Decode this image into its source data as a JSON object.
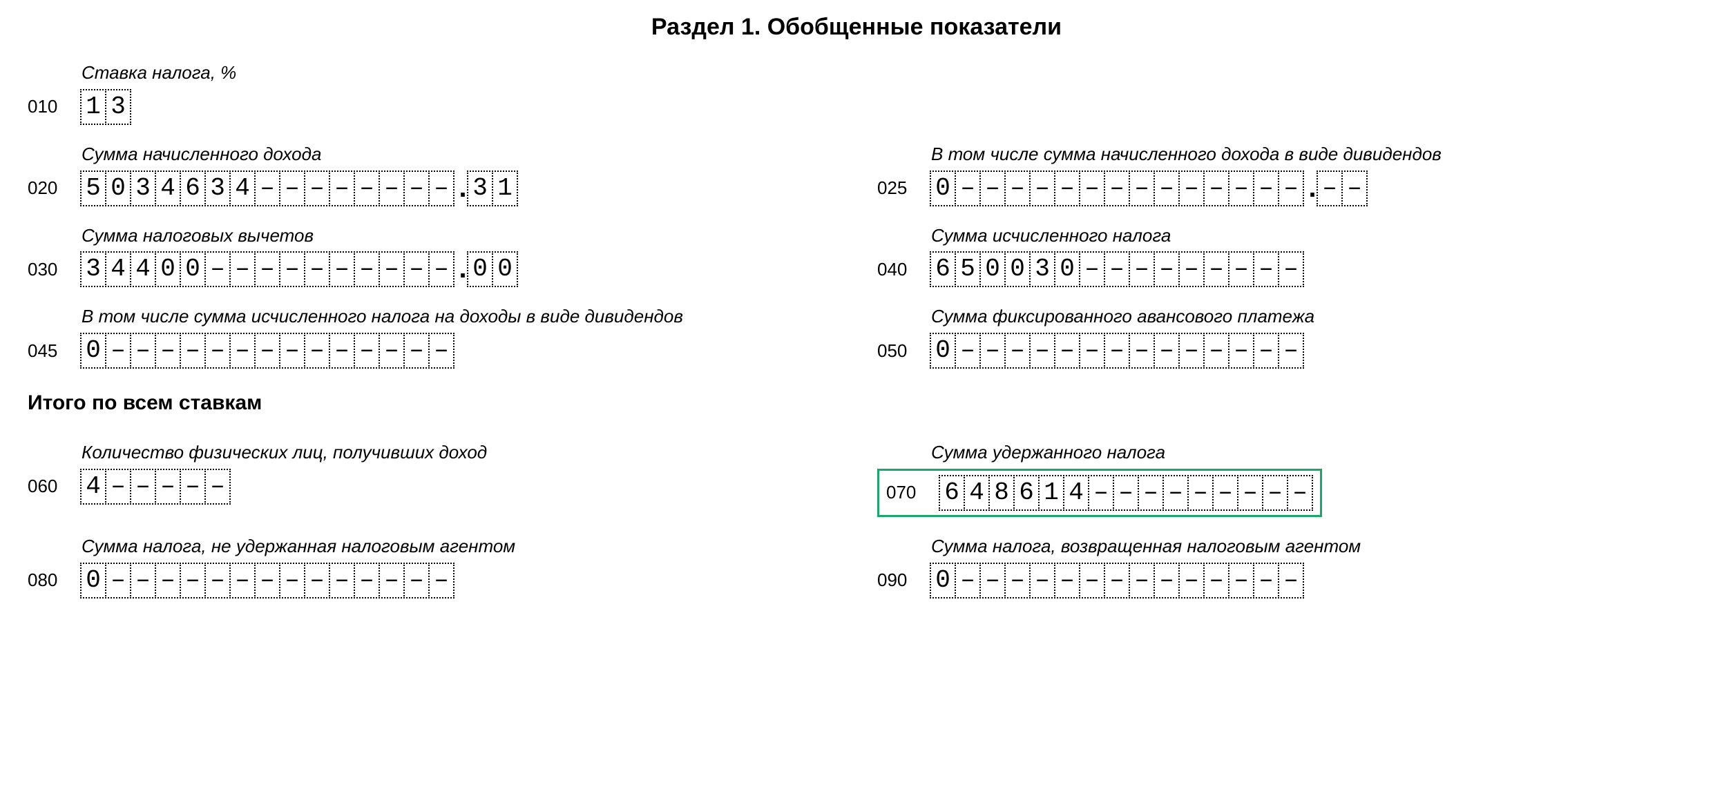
{
  "title": "Раздел 1. Обобщенные показатели",
  "subtitle": "Итого по всем ставкам",
  "dash": "–",
  "highlight_color": "#1aa86a",
  "labels": {
    "l010": "Ставка налога, %",
    "l020": "Сумма начисленного дохода",
    "l025": "В том числе сумма начисленного дохода в виде дивидендов",
    "l030": "Сумма налоговых вычетов",
    "l040": "Сумма исчисленного налога",
    "l045": "В том числе сумма исчисленного налога на доходы в виде дивидендов",
    "l050": "Сумма фиксированного авансового платежа",
    "l060": "Количество физических лиц, получивших доход",
    "l070": "Сумма удержанного налога",
    "l080": "Сумма налога, не удержанная налоговым агентом",
    "l090": "Сумма налога, возвращенная налоговым агентом"
  },
  "fields": {
    "f010": {
      "code": "010",
      "int_len": 2,
      "dec_len": 0,
      "int": "13",
      "dec": "",
      "highlighted": false
    },
    "f020": {
      "code": "020",
      "int_len": 15,
      "dec_len": 2,
      "int": "5034634",
      "dec": "31",
      "highlighted": false
    },
    "f025": {
      "code": "025",
      "int_len": 15,
      "dec_len": 2,
      "int": "0",
      "dec": "",
      "highlighted": false
    },
    "f030": {
      "code": "030",
      "int_len": 15,
      "dec_len": 2,
      "int": "34400",
      "dec": "00",
      "highlighted": false
    },
    "f040": {
      "code": "040",
      "int_len": 15,
      "dec_len": 0,
      "int": "650030",
      "dec": "",
      "highlighted": false
    },
    "f045": {
      "code": "045",
      "int_len": 15,
      "dec_len": 0,
      "int": "0",
      "dec": "",
      "highlighted": false
    },
    "f050": {
      "code": "050",
      "int_len": 15,
      "dec_len": 0,
      "int": "0",
      "dec": "",
      "highlighted": false
    },
    "f060": {
      "code": "060",
      "int_len": 6,
      "dec_len": 0,
      "int": "4",
      "dec": "",
      "highlighted": false
    },
    "f070": {
      "code": "070",
      "int_len": 15,
      "dec_len": 0,
      "int": "648614",
      "dec": "",
      "highlighted": true
    },
    "f080": {
      "code": "080",
      "int_len": 15,
      "dec_len": 0,
      "int": "0",
      "dec": "",
      "highlighted": false
    },
    "f090": {
      "code": "090",
      "int_len": 15,
      "dec_len": 0,
      "int": "0",
      "dec": "",
      "highlighted": false
    }
  }
}
